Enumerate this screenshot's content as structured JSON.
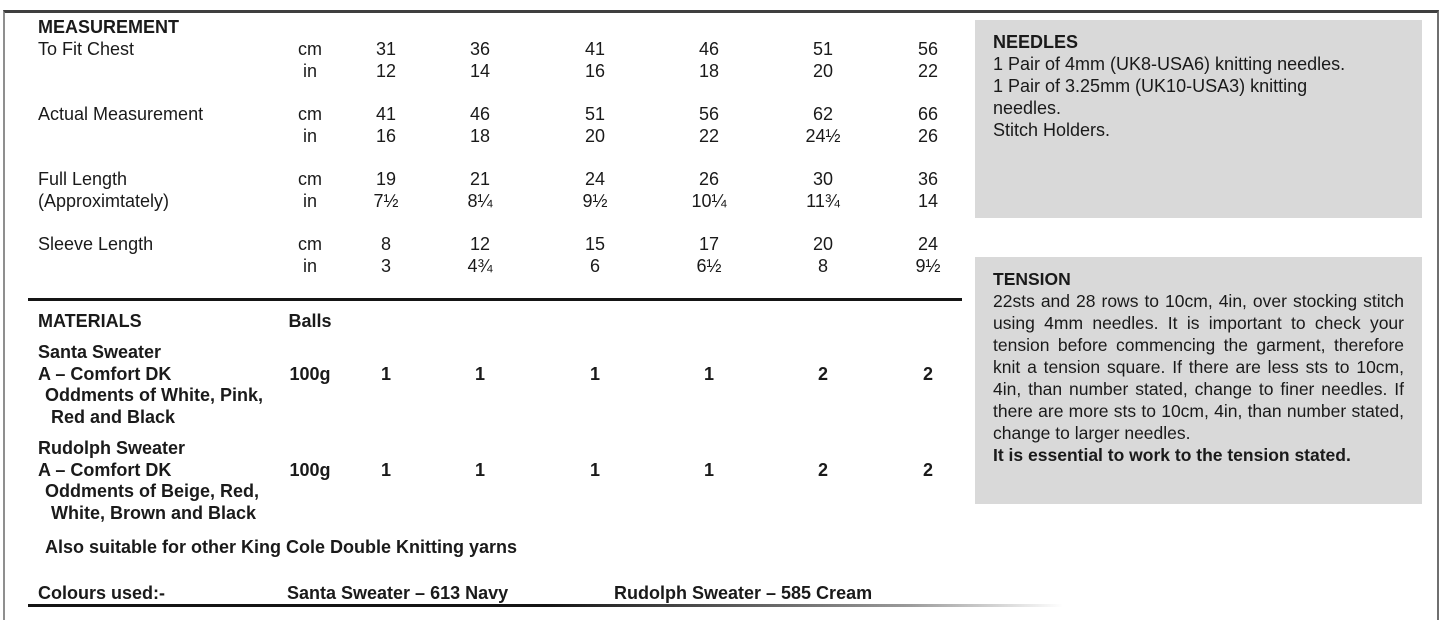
{
  "measurement": {
    "title": "MEASUREMENT",
    "units": {
      "cm": "cm",
      "in": "in"
    },
    "rows": [
      {
        "label": "To Fit Chest",
        "label2": "",
        "cm": [
          "31",
          "36",
          "41",
          "46",
          "51",
          "56"
        ],
        "in": [
          "12",
          "14",
          "16",
          "18",
          "20",
          "22"
        ]
      },
      {
        "label": "Actual Measurement",
        "label2": "",
        "cm": [
          "41",
          "46",
          "51",
          "56",
          "62",
          "66"
        ],
        "in": [
          "16",
          "18",
          "20",
          "22",
          "24½",
          "26"
        ]
      },
      {
        "label": "Full Length",
        "label2": "(Approximtately)",
        "cm": [
          "19",
          "21",
          "24",
          "26",
          "30",
          "36"
        ],
        "in": [
          "7½",
          "8¼",
          "9½",
          "10¼",
          "11¾",
          "14"
        ]
      },
      {
        "label": "Sleeve Length",
        "label2": "",
        "cm": [
          "8",
          "12",
          "15",
          "17",
          "20",
          "24"
        ],
        "in": [
          "3",
          "4¾",
          "6",
          "6½",
          "8",
          "9½"
        ]
      }
    ]
  },
  "materials": {
    "title": "MATERIALS",
    "balls_header": "Balls",
    "items": [
      {
        "name": "Santa Sweater",
        "yarn": "A – Comfort DK",
        "oddments": [
          "Oddments of White, Pink,",
          "Red and Black"
        ],
        "weight": "100g",
        "balls": [
          "1",
          "1",
          "1",
          "1",
          "2",
          "2"
        ]
      },
      {
        "name": "Rudolph Sweater",
        "yarn": "A – Comfort DK",
        "oddments": [
          "Oddments of Beige, Red,",
          "White, Brown and Black"
        ],
        "weight": "100g",
        "balls": [
          "1",
          "1",
          "1",
          "1",
          "2",
          "2"
        ]
      }
    ],
    "note": "Also suitable for other King Cole Double Knitting yarns"
  },
  "colours": {
    "label": "Colours used:-",
    "santa": "Santa Sweater – 613 Navy",
    "rudolph": "Rudolph Sweater – 585 Cream"
  },
  "needles": {
    "title": "NEEDLES",
    "lines": [
      "1 Pair of 4mm (UK8-USA6) knitting needles.",
      "1 Pair of 3.25mm (UK10-USA3) knitting",
      "needles.",
      "Stitch Holders."
    ],
    "bg": "#d9d9d9"
  },
  "tension": {
    "title": "TENSION",
    "body": "22sts and 28 rows to 10cm, 4in, over stocking stitch using 4mm needles.  It is important to check your tension before commencing the garment, therefore knit a tension square. If there are less sts to 10cm, 4in, than number stated, change to finer needles. If there are more sts to 10cm, 4in, than number stated, change to larger needles.",
    "bold_line": "It is essential to work to the tension stated.",
    "bg": "#d9d9d9"
  }
}
